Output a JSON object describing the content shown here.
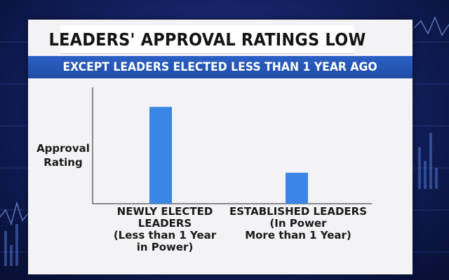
{
  "colors": {
    "bar": "#3a86e6",
    "subtitle_bg": "#2556b8",
    "axis": "#222222"
  },
  "chart_data": {
    "type": "bar",
    "title": "LEADERS' APPROVAL RATINGS LOW",
    "subtitle": "EXCEPT LEADERS ELECTED LESS THAN 1 YEAR AGO",
    "ylabel": "Approval Rating",
    "ylabel_lines": [
      "Approval",
      "Rating"
    ],
    "categories": [
      {
        "name": "NEWLY ELECTED LEADERS",
        "name_lines": [
          "NEWLY ELECTED",
          "LEADERS"
        ],
        "note_lines": [
          "(Less than 1 Year",
          "in Power)"
        ]
      },
      {
        "name": "ESTABLISHED LEADERS",
        "name_lines": [
          "ESTABLISHED LEADERS"
        ],
        "note_lines": [
          "(In Power",
          "More than 1 Year)"
        ]
      }
    ],
    "values": [
      100,
      32
    ],
    "ylim": [
      0,
      120
    ],
    "grid": false
  }
}
